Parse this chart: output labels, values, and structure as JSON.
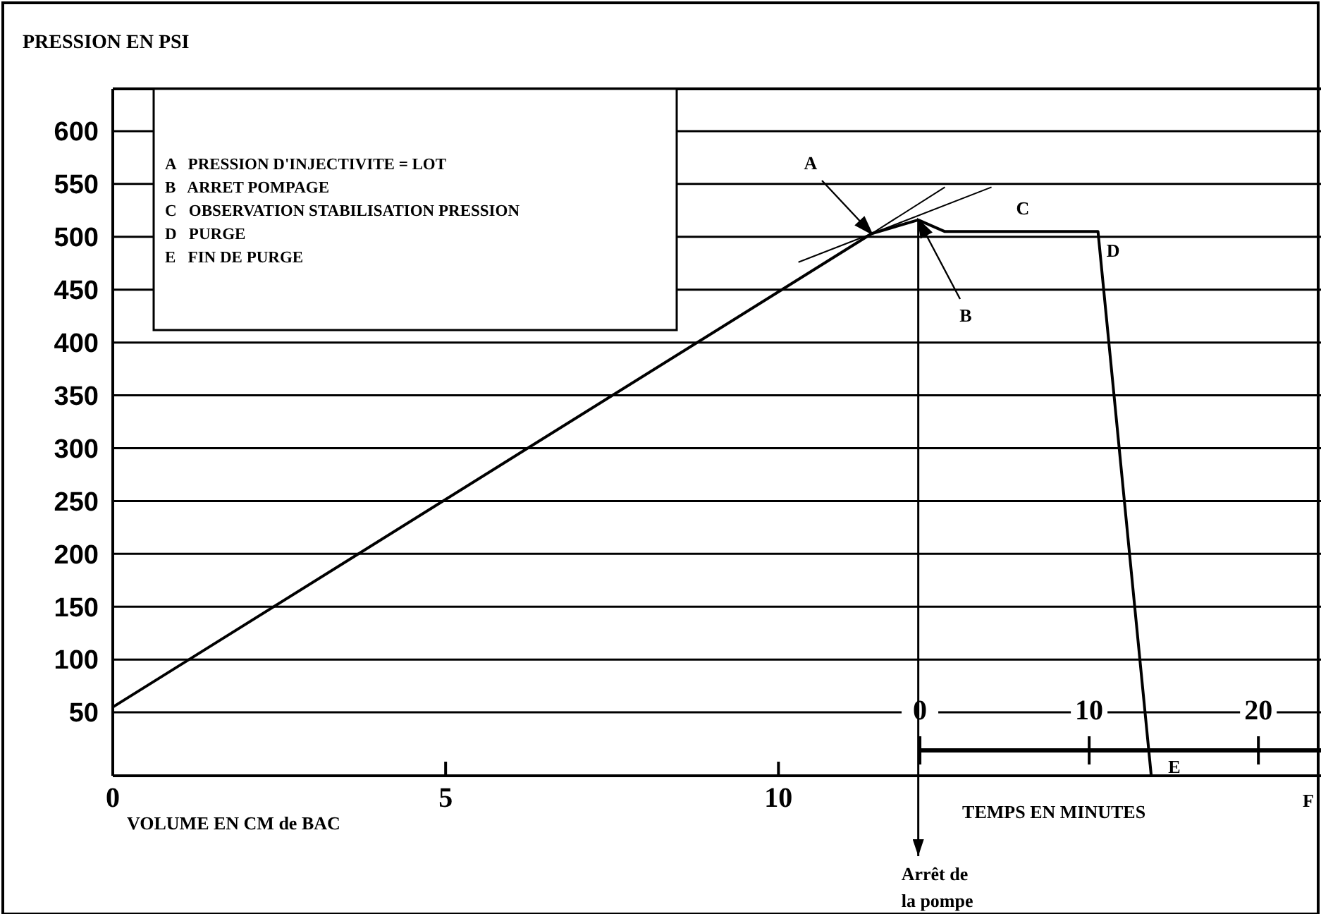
{
  "chart_data": {
    "type": "line",
    "ylabel": "PRESSION EN PSI",
    "xlabel": "VOLUME EN CM de BAC",
    "x2label": "TEMPS EN MINUTES",
    "xlim": [
      0,
      18.15
    ],
    "xticks": [
      0,
      5,
      10
    ],
    "ylim": [
      -10,
      640
    ],
    "yticks": [
      50,
      100,
      150,
      200,
      250,
      300,
      350,
      400,
      450,
      500,
      550,
      600
    ],
    "x2lim": [
      -47.7,
      23.7
    ],
    "x2ticks": [
      0,
      10,
      20
    ],
    "grid": "y",
    "marker": "none",
    "line_style": "solid",
    "series": [
      {
        "color": "#000000",
        "x": [
          0,
          11.4,
          12.1,
          12.5,
          14.8,
          15.6
        ],
        "values": [
          55,
          503,
          516,
          505,
          505,
          -10
        ]
      },
      {
        "color": "#000000",
        "x": [
          10.3,
          13.2
        ],
        "values": [
          476,
          547
        ]
      },
      {
        "color": "#000000",
        "x": [
          11.4,
          12.5
        ],
        "values": [
          503,
          547
        ]
      }
    ],
    "ref_lines": [
      {
        "axis": "x",
        "value": 12.1,
        "label": "Arrêt de la pompe"
      }
    ],
    "annotations": [
      "A   PRESSION D'INJECTIVITE = LOT",
      "B   ARRET POMPAGE",
      "C   OBSERVATION STABILISATION PRESSION",
      "D   PURGE",
      "E   FIN DE PURGE",
      {
        "text": "C",
        "x": 13.4,
        "y": 505
      },
      {
        "text": "D",
        "x": 14.8,
        "y": 505
      },
      {
        "text": "E",
        "x": 15.6,
        "y": -10
      },
      "A",
      "B",
      "F"
    ]
  }
}
